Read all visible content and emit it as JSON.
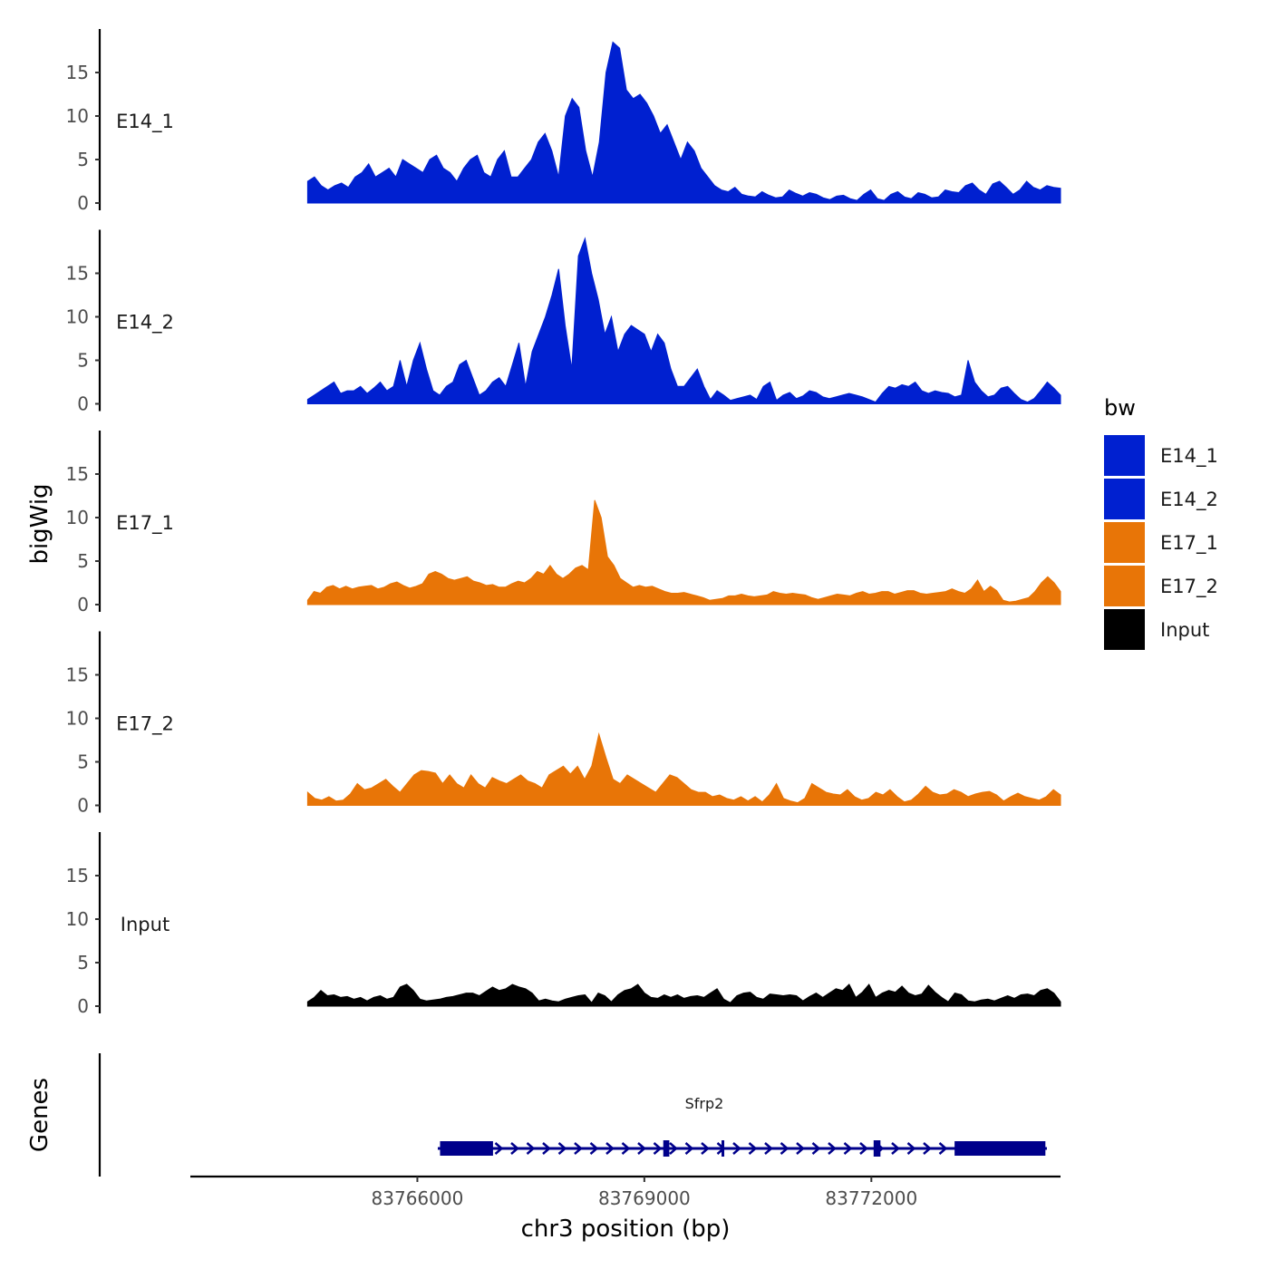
{
  "chart_data": {
    "type": "area",
    "title": "",
    "ylabel": "bigWig",
    "genes_label": "Genes",
    "xlabel": "chr3 position (bp)",
    "xlim": [
      83763000,
      83774500
    ],
    "ylim": [
      0,
      20
    ],
    "yticks": [
      0,
      5,
      10,
      15
    ],
    "ytick_labels": [
      "0",
      "5",
      "10",
      "15"
    ],
    "xticks": [
      83766000,
      83769000,
      83772000
    ],
    "xtick_labels": [
      "83766000",
      "83769000",
      "83772000"
    ],
    "track_x_start": 83764550,
    "track_x_end": 83774500,
    "tracks": [
      {
        "name": "E14_1",
        "color": "#0020D0",
        "values": [
          2.5,
          3,
          2,
          1.5,
          2,
          2.3,
          1.8,
          3,
          3.5,
          4.5,
          3,
          3.5,
          4,
          3,
          5,
          4.5,
          4,
          3.5,
          5,
          5.5,
          4,
          3.5,
          2.5,
          4,
          5,
          5.5,
          3.5,
          3,
          5,
          6,
          3,
          3,
          4,
          5,
          7,
          8,
          6,
          3,
          10,
          12,
          11,
          6,
          3,
          7,
          15,
          18.5,
          17.8,
          13,
          12,
          12.5,
          11.5,
          10,
          8,
          9,
          7,
          5,
          7,
          6,
          4,
          3,
          2,
          1.5,
          1.3,
          1.8,
          1,
          0.8,
          0.7,
          1.3,
          0.9,
          0.6,
          0.7,
          1.5,
          1.1,
          0.8,
          1.2,
          1,
          0.6,
          0.4,
          0.8,
          0.9,
          0.5,
          0.3,
          1,
          1.5,
          0.5,
          0.3,
          1,
          1.3,
          0.7,
          0.5,
          1.2,
          1,
          0.6,
          0.7,
          1.5,
          1.3,
          1.2,
          2,
          2.3,
          1.5,
          1,
          2.2,
          2.5,
          1.8,
          1,
          1.5,
          2.5,
          1.8,
          1.5,
          2,
          1.8,
          1.7
        ]
      },
      {
        "name": "E14_2",
        "color": "#0020D0",
        "values": [
          0.5,
          1,
          1.5,
          2,
          2.5,
          1.2,
          1.5,
          1.5,
          2,
          1.2,
          1.8,
          2.5,
          1.5,
          2,
          5,
          2,
          5,
          7,
          4,
          1.5,
          1,
          2,
          2.5,
          4.5,
          5,
          3,
          1,
          1.5,
          2.5,
          3,
          2,
          4.5,
          7,
          2,
          6,
          8,
          10,
          12.5,
          15.5,
          9,
          4,
          17,
          19,
          15,
          12,
          8,
          10,
          6,
          8,
          9,
          8.5,
          8,
          6,
          8,
          7,
          4,
          2,
          2,
          3,
          4,
          2,
          0.5,
          1.5,
          1,
          0.4,
          0.6,
          0.8,
          1,
          0.5,
          2,
          2.5,
          0.4,
          1,
          1.3,
          0.6,
          0.9,
          1.5,
          1.3,
          0.8,
          0.6,
          0.8,
          1,
          1.2,
          1,
          0.8,
          0.5,
          0.2,
          1.2,
          2,
          1.8,
          2.2,
          2,
          2.5,
          1.5,
          1.2,
          1.5,
          1.3,
          1.2,
          0.8,
          1,
          5,
          2.5,
          1.5,
          0.8,
          1,
          1.8,
          2,
          1.2,
          0.5,
          0.2,
          0.6,
          1.5,
          2.5,
          1.8,
          1
        ]
      },
      {
        "name": "E17_1",
        "color": "#E87507",
        "values": [
          0.5,
          1.5,
          1.3,
          2,
          2.2,
          1.8,
          2.1,
          1.8,
          2,
          2.1,
          2.2,
          1.8,
          2,
          2.4,
          2.6,
          2.2,
          1.9,
          2.1,
          2.4,
          3.5,
          3.8,
          3.5,
          3,
          2.8,
          3,
          3.2,
          2.7,
          2.5,
          2.2,
          2.3,
          2,
          2,
          2.4,
          2.7,
          2.5,
          3,
          3.8,
          3.5,
          4.5,
          3.5,
          3,
          3.5,
          4.2,
          4.5,
          4,
          12,
          10,
          5.5,
          4.5,
          3,
          2.5,
          2,
          2.2,
          2,
          2.1,
          1.8,
          1.5,
          1.3,
          1.3,
          1.4,
          1.2,
          1,
          0.8,
          0.5,
          0.6,
          0.7,
          1,
          1,
          1.2,
          1,
          0.9,
          1,
          1.1,
          1.5,
          1.3,
          1.2,
          1.3,
          1.2,
          1.1,
          0.8,
          0.6,
          0.8,
          1,
          1.2,
          1.1,
          1,
          1.3,
          1.5,
          1.2,
          1.3,
          1.5,
          1.5,
          1.2,
          1.4,
          1.6,
          1.6,
          1.3,
          1.2,
          1.3,
          1.4,
          1.5,
          1.8,
          1.5,
          1.3,
          1.8,
          2.8,
          1.5,
          2.1,
          1.6,
          0.5,
          0.3,
          0.4,
          0.6,
          0.8,
          1.5,
          2.5,
          3.2,
          2.5,
          1.5
        ]
      },
      {
        "name": "E17_2",
        "color": "#E87507",
        "values": [
          1.5,
          0.8,
          0.6,
          1,
          0.5,
          0.6,
          1.3,
          2.5,
          1.8,
          2,
          2.5,
          3,
          2.2,
          1.5,
          2.5,
          3.5,
          4,
          3.9,
          3.7,
          2.5,
          3.5,
          2.5,
          2,
          3.5,
          2.5,
          2,
          3.2,
          2.8,
          2.5,
          3,
          3.5,
          2.8,
          2.5,
          2,
          3.5,
          4,
          4.5,
          3.6,
          4.5,
          3,
          4.5,
          8.2,
          5.5,
          3,
          2.5,
          3.5,
          3,
          2.5,
          2,
          1.5,
          2.5,
          3.5,
          3.2,
          2.5,
          1.8,
          1.5,
          1.5,
          1,
          1.2,
          0.8,
          0.6,
          1,
          0.5,
          1,
          0.4,
          1.2,
          2.5,
          0.8,
          0.5,
          0.3,
          0.8,
          2.5,
          2,
          1.5,
          1.3,
          1.2,
          1.8,
          1,
          0.6,
          0.8,
          1.5,
          1.2,
          1.8,
          1,
          0.4,
          0.6,
          1.3,
          2.2,
          1.5,
          1.2,
          1.3,
          1.8,
          1.5,
          1,
          1.3,
          1.5,
          1.6,
          1.2,
          0.5,
          1,
          1.4,
          1,
          0.8,
          0.6,
          1,
          1.8,
          1.2
        ]
      },
      {
        "name": "Input",
        "color": "#000000",
        "values": [
          0.5,
          1,
          1.8,
          1.2,
          1.3,
          1,
          1.1,
          0.8,
          1,
          0.6,
          1,
          1.2,
          0.8,
          1,
          2.2,
          2.5,
          1.8,
          0.8,
          0.6,
          0.7,
          0.8,
          1,
          1.1,
          1.3,
          1.5,
          1.5,
          1.2,
          1.7,
          2.2,
          1.8,
          2,
          2.5,
          2.2,
          2,
          1.5,
          0.6,
          0.8,
          0.6,
          0.5,
          0.8,
          1,
          1.2,
          1.3,
          0.4,
          1.5,
          1.2,
          0.5,
          1.3,
          1.8,
          2,
          2.5,
          1.5,
          1,
          0.9,
          1.3,
          1,
          1.3,
          0.9,
          1.1,
          1.2,
          1,
          1.5,
          2,
          0.8,
          0.4,
          1.2,
          1.5,
          1.6,
          1,
          0.8,
          1.4,
          1.3,
          1.2,
          1.3,
          1.2,
          0.6,
          1.1,
          1.5,
          1,
          1.5,
          2,
          1.8,
          2.5,
          1,
          1.6,
          2.5,
          1,
          1.5,
          1.8,
          1.6,
          2.3,
          1.5,
          1.2,
          1.4,
          2.4,
          1.6,
          1,
          0.5,
          1.5,
          1.3,
          0.6,
          0.5,
          0.7,
          0.8,
          0.6,
          0.9,
          1.2,
          0.9,
          1.3,
          1.4,
          1.2,
          1.8,
          2,
          1.5,
          0.5
        ]
      }
    ],
    "legend": {
      "title": "bw",
      "position": "right",
      "entries": [
        {
          "label": "E14_1",
          "color": "#0020D0"
        },
        {
          "label": "E14_2",
          "color": "#0020D0"
        },
        {
          "label": "E17_1",
          "color": "#E87507"
        },
        {
          "label": "E17_2",
          "color": "#E87507"
        },
        {
          "label": "Input",
          "color": "#000000"
        }
      ]
    },
    "gene": {
      "name": "Sfrp2",
      "color": "#00008B",
      "strand": "+",
      "start": 83766270,
      "end": 83774320,
      "exons": [
        {
          "start": 83766300,
          "end": 83767000,
          "type": "utr-cds"
        },
        {
          "start": 83769250,
          "end": 83769330,
          "type": "cds"
        },
        {
          "start": 83770020,
          "end": 83770050,
          "type": "cds"
        },
        {
          "start": 83772030,
          "end": 83772120,
          "type": "cds"
        },
        {
          "start": 83773100,
          "end": 83774300,
          "type": "utr-cds"
        }
      ]
    }
  }
}
